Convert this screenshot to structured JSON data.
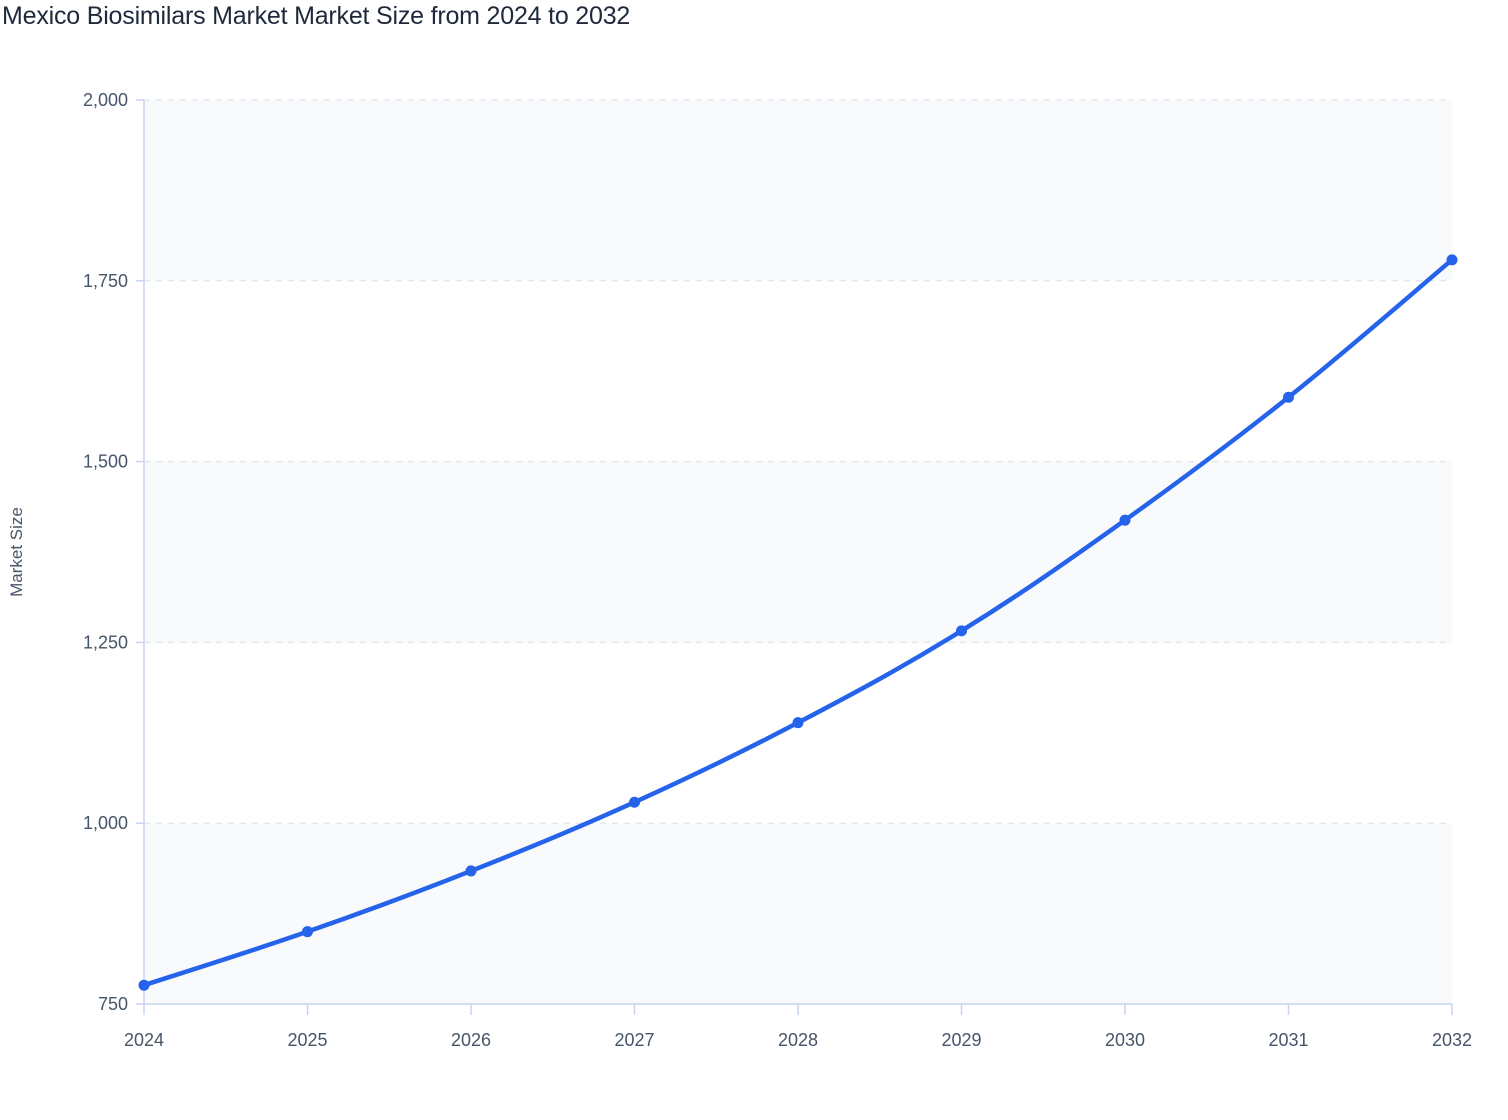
{
  "title": "Mexico Biosimilars Market Market Size from 2024 to 2032",
  "colors": {
    "line": "#2563eb",
    "axis": "#c7d4f0",
    "grid": "#e2e8f0",
    "band": "#f8fafc",
    "text": "#475569",
    "title": "#1e293b"
  },
  "chart_data": {
    "type": "line",
    "title": "Mexico Biosimilars Market Market Size from 2024 to 2032",
    "xlabel": "",
    "ylabel": "Market Size",
    "categories": [
      "2024",
      "2025",
      "2026",
      "2027",
      "2028",
      "2029",
      "2030",
      "2031",
      "2032"
    ],
    "series": [
      {
        "name": "Market Size",
        "values": [
          776,
          850,
          934,
          1029,
          1139,
          1266,
          1419,
          1589,
          1779
        ]
      }
    ],
    "ylim": [
      750,
      2000
    ],
    "yticks": [
      750,
      1000,
      1250,
      1500,
      1750,
      2000
    ],
    "ytick_labels": [
      "750",
      "1,000",
      "1,250",
      "1,500",
      "1,750",
      "2,000"
    ],
    "grid": true,
    "legend": "none"
  }
}
